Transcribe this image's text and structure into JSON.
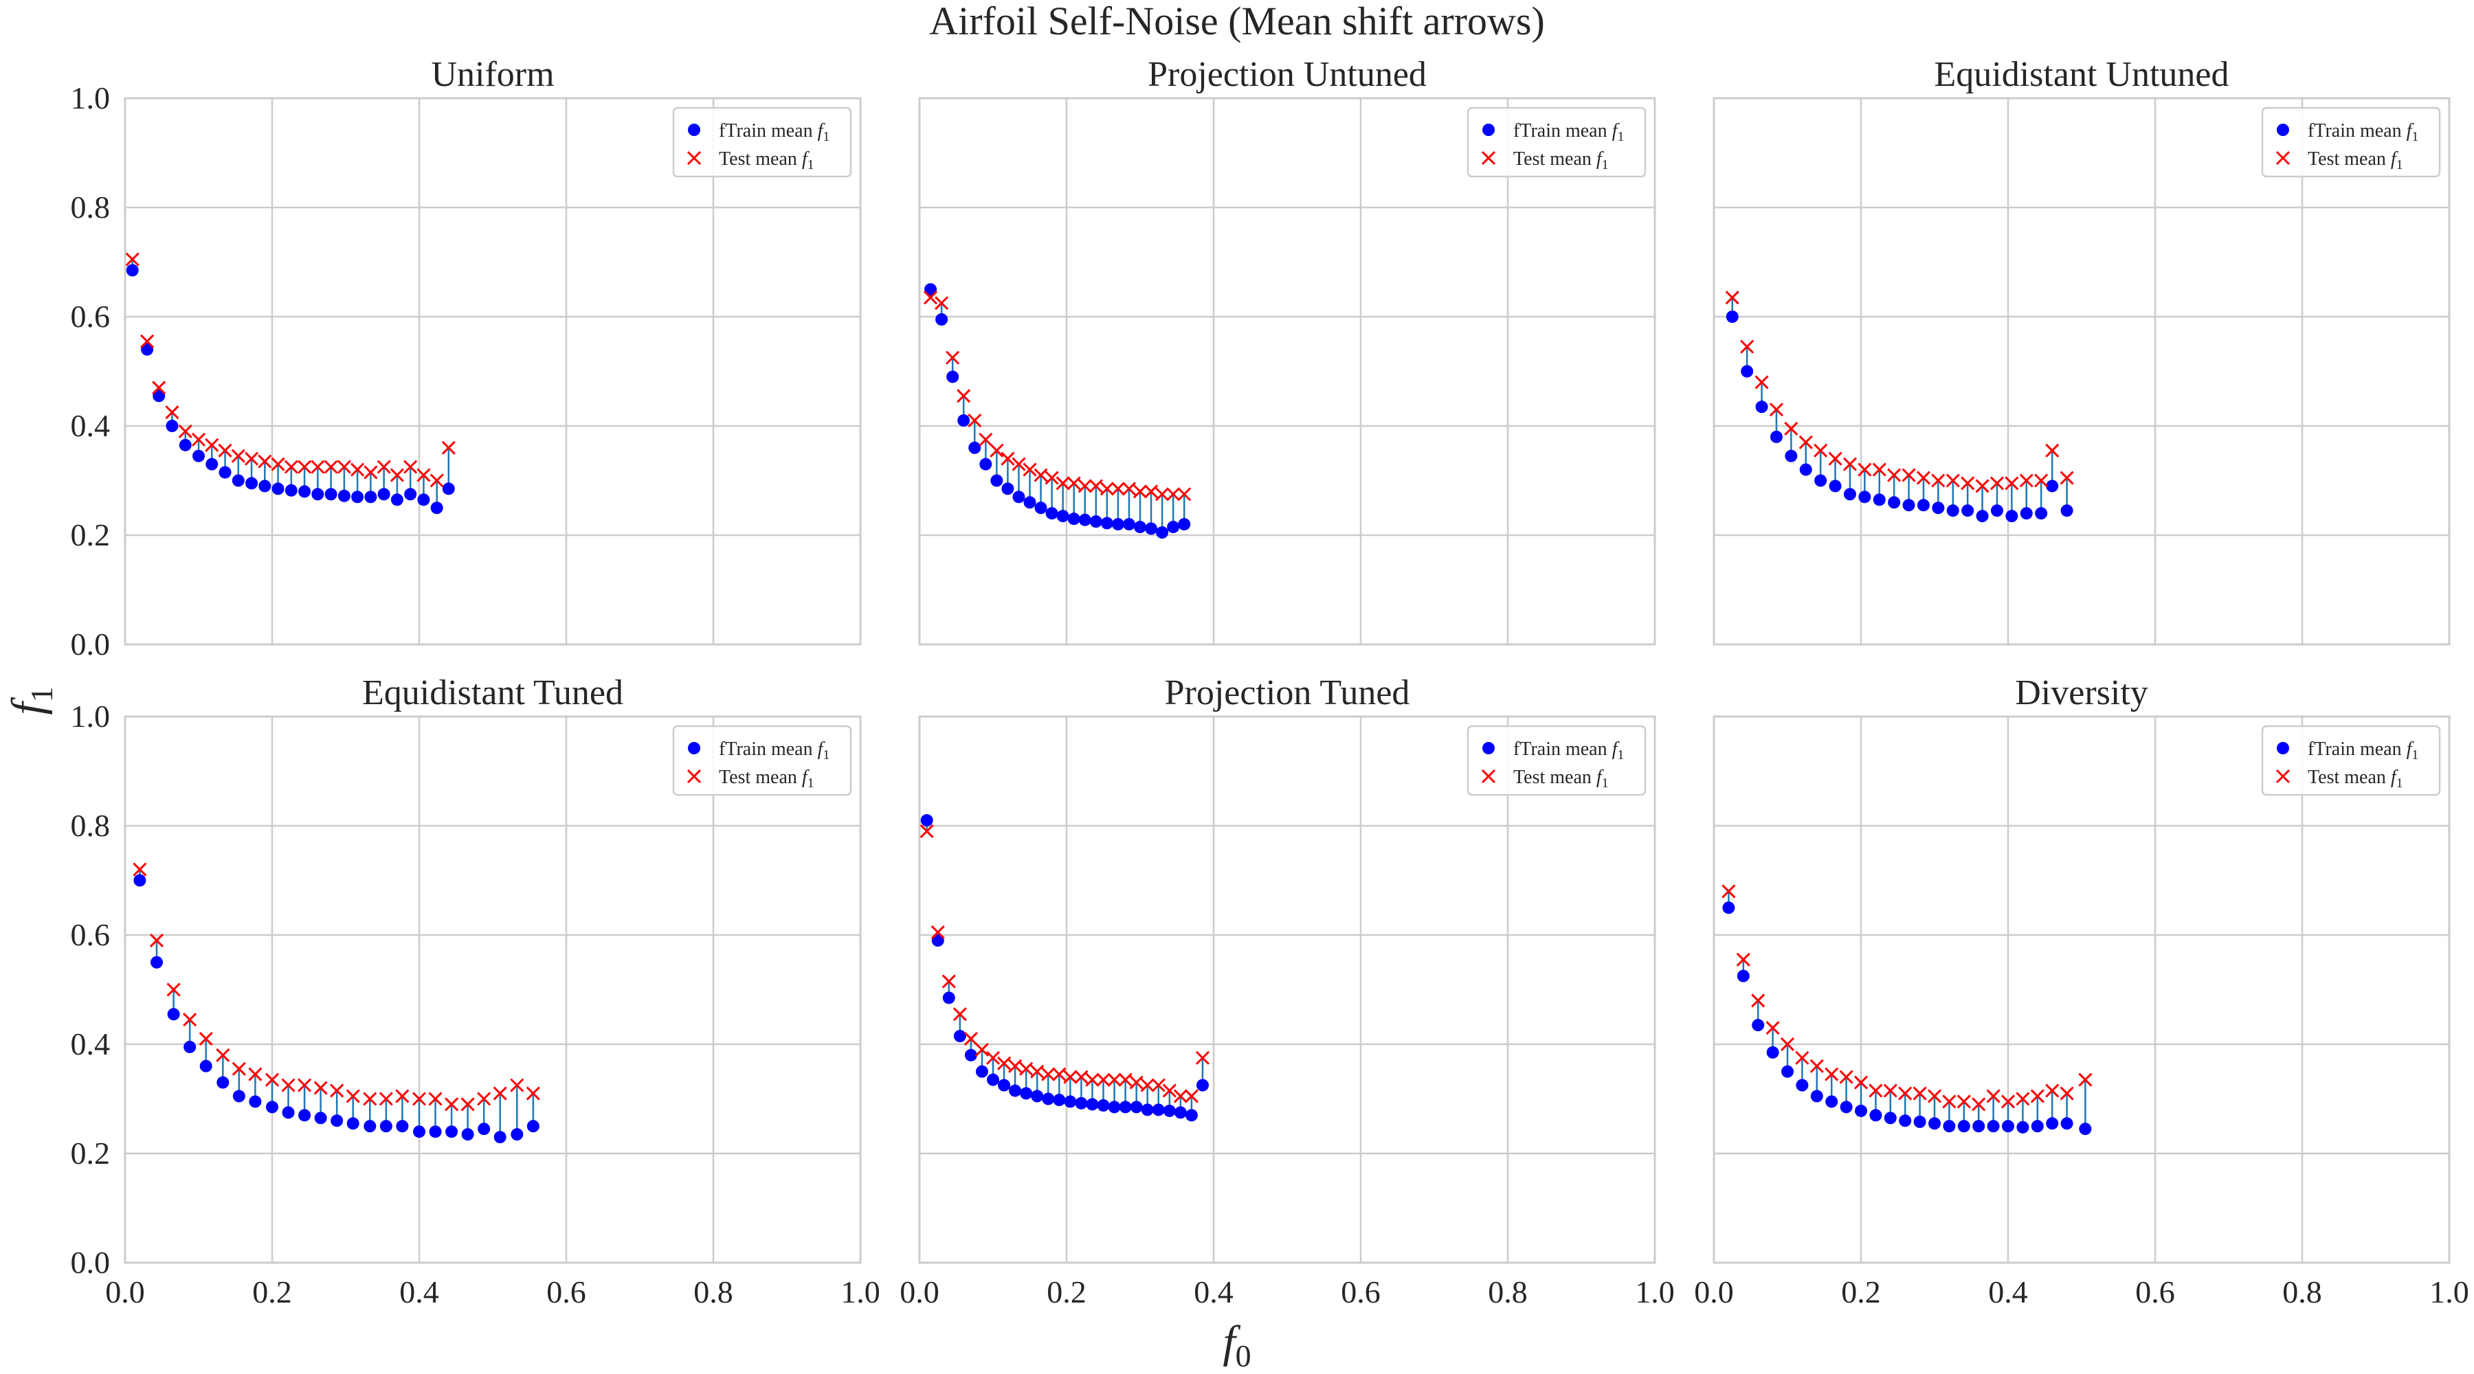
{
  "figure": {
    "title": "Airfoil Self-Noise (Mean shift arrows)",
    "xlabel_base": "f",
    "xlabel_sub": "0",
    "ylabel_base": "f",
    "ylabel_sub": "1"
  },
  "colors": {
    "train_marker": "#0000ff",
    "test_marker": "#ff0000",
    "shift_line": "#1f77b4",
    "grid": "#cccccc",
    "axes_frame": "#cccccc",
    "text": "#262626"
  },
  "legend": {
    "train_label": "fTrain mean ",
    "test_label": "Test mean ",
    "var_base": "f",
    "var_sub": "1",
    "placement": "top-right"
  },
  "chart_data": [
    {
      "type": "scatter",
      "title": "Uniform",
      "xlim": [
        0,
        1
      ],
      "ylim": [
        0,
        1
      ],
      "xticks": [
        "0.0",
        "0.2",
        "0.4",
        "0.6",
        "0.8",
        "1.0"
      ],
      "yticks": [
        "0.0",
        "0.2",
        "0.4",
        "0.6",
        "0.8",
        "1.0"
      ],
      "grid": true,
      "series": [
        {
          "name": "fTrain mean f1",
          "marker": "circle",
          "x": [
            0.01,
            0.03,
            0.046,
            0.064,
            0.082,
            0.1,
            0.118,
            0.136,
            0.154,
            0.172,
            0.19,
            0.208,
            0.226,
            0.244,
            0.262,
            0.28,
            0.298,
            0.316,
            0.334,
            0.352,
            0.37,
            0.388,
            0.406,
            0.424,
            0.44
          ],
          "y": [
            0.685,
            0.54,
            0.455,
            0.4,
            0.365,
            0.345,
            0.33,
            0.315,
            0.3,
            0.295,
            0.29,
            0.285,
            0.282,
            0.28,
            0.275,
            0.275,
            0.272,
            0.27,
            0.27,
            0.275,
            0.265,
            0.275,
            0.265,
            0.25,
            0.285
          ]
        },
        {
          "name": "Test mean f1",
          "marker": "x",
          "x": [
            0.01,
            0.03,
            0.046,
            0.064,
            0.082,
            0.1,
            0.118,
            0.136,
            0.154,
            0.172,
            0.19,
            0.208,
            0.226,
            0.244,
            0.262,
            0.28,
            0.298,
            0.316,
            0.334,
            0.352,
            0.37,
            0.388,
            0.406,
            0.424,
            0.44
          ],
          "y": [
            0.705,
            0.555,
            0.47,
            0.425,
            0.39,
            0.375,
            0.365,
            0.355,
            0.345,
            0.34,
            0.335,
            0.33,
            0.325,
            0.325,
            0.325,
            0.325,
            0.325,
            0.32,
            0.315,
            0.325,
            0.31,
            0.325,
            0.31,
            0.3,
            0.36
          ]
        }
      ]
    },
    {
      "type": "scatter",
      "title": "Projection Untuned",
      "xlim": [
        0,
        1
      ],
      "ylim": [
        0,
        1
      ],
      "xticks": [
        "0.0",
        "0.2",
        "0.4",
        "0.6",
        "0.8",
        "1.0"
      ],
      "yticks": [
        "0.0",
        "0.2",
        "0.4",
        "0.6",
        "0.8",
        "1.0"
      ],
      "grid": true,
      "series": [
        {
          "name": "fTrain mean f1",
          "marker": "circle",
          "x": [
            0.015,
            0.03,
            0.045,
            0.06,
            0.075,
            0.09,
            0.105,
            0.12,
            0.135,
            0.15,
            0.165,
            0.18,
            0.195,
            0.21,
            0.225,
            0.24,
            0.255,
            0.27,
            0.285,
            0.3,
            0.315,
            0.33,
            0.345,
            0.36
          ],
          "y": [
            0.65,
            0.595,
            0.49,
            0.41,
            0.36,
            0.33,
            0.3,
            0.285,
            0.27,
            0.26,
            0.25,
            0.24,
            0.235,
            0.23,
            0.228,
            0.225,
            0.222,
            0.22,
            0.22,
            0.215,
            0.212,
            0.205,
            0.215,
            0.22
          ]
        },
        {
          "name": "Test mean f1",
          "marker": "x",
          "x": [
            0.015,
            0.03,
            0.045,
            0.06,
            0.075,
            0.09,
            0.105,
            0.12,
            0.135,
            0.15,
            0.165,
            0.18,
            0.195,
            0.21,
            0.225,
            0.24,
            0.255,
            0.27,
            0.285,
            0.3,
            0.315,
            0.33,
            0.345,
            0.36
          ],
          "y": [
            0.635,
            0.625,
            0.525,
            0.455,
            0.41,
            0.375,
            0.355,
            0.34,
            0.33,
            0.32,
            0.31,
            0.305,
            0.295,
            0.295,
            0.29,
            0.29,
            0.285,
            0.285,
            0.285,
            0.28,
            0.28,
            0.275,
            0.275,
            0.275
          ]
        }
      ]
    },
    {
      "type": "scatter",
      "title": "Equidistant Untuned",
      "xlim": [
        0,
        1
      ],
      "ylim": [
        0,
        1
      ],
      "xticks": [
        "0.0",
        "0.2",
        "0.4",
        "0.6",
        "0.8",
        "1.0"
      ],
      "yticks": [
        "0.0",
        "0.2",
        "0.4",
        "0.6",
        "0.8",
        "1.0"
      ],
      "grid": true,
      "series": [
        {
          "name": "fTrain mean f1",
          "marker": "circle",
          "x": [
            0.025,
            0.045,
            0.065,
            0.085,
            0.105,
            0.125,
            0.145,
            0.165,
            0.185,
            0.205,
            0.225,
            0.245,
            0.265,
            0.285,
            0.305,
            0.325,
            0.345,
            0.365,
            0.385,
            0.405,
            0.425,
            0.445,
            0.46,
            0.48
          ],
          "y": [
            0.6,
            0.5,
            0.435,
            0.38,
            0.345,
            0.32,
            0.3,
            0.29,
            0.275,
            0.27,
            0.265,
            0.26,
            0.255,
            0.255,
            0.25,
            0.245,
            0.245,
            0.235,
            0.245,
            0.235,
            0.24,
            0.24,
            0.29,
            0.245
          ]
        },
        {
          "name": "Test mean f1",
          "marker": "x",
          "x": [
            0.025,
            0.045,
            0.065,
            0.085,
            0.105,
            0.125,
            0.145,
            0.165,
            0.185,
            0.205,
            0.225,
            0.245,
            0.265,
            0.285,
            0.305,
            0.325,
            0.345,
            0.365,
            0.385,
            0.405,
            0.425,
            0.445,
            0.46,
            0.48
          ],
          "y": [
            0.635,
            0.545,
            0.48,
            0.43,
            0.395,
            0.37,
            0.355,
            0.34,
            0.33,
            0.32,
            0.32,
            0.31,
            0.31,
            0.305,
            0.3,
            0.3,
            0.295,
            0.29,
            0.295,
            0.295,
            0.3,
            0.3,
            0.355,
            0.305
          ]
        }
      ]
    },
    {
      "type": "scatter",
      "title": "Equidistant Tuned",
      "xlim": [
        0,
        1
      ],
      "ylim": [
        0,
        1
      ],
      "xticks": [
        "0.0",
        "0.2",
        "0.4",
        "0.6",
        "0.8",
        "1.0"
      ],
      "yticks": [
        "0.0",
        "0.2",
        "0.4",
        "0.6",
        "0.8",
        "1.0"
      ],
      "grid": true,
      "series": [
        {
          "name": "fTrain mean f1",
          "marker": "circle",
          "x": [
            0.02,
            0.043,
            0.066,
            0.088,
            0.11,
            0.133,
            0.155,
            0.177,
            0.2,
            0.222,
            0.244,
            0.266,
            0.288,
            0.31,
            0.333,
            0.355,
            0.377,
            0.4,
            0.422,
            0.444,
            0.466,
            0.488,
            0.51,
            0.533,
            0.555
          ],
          "y": [
            0.7,
            0.55,
            0.455,
            0.395,
            0.36,
            0.33,
            0.305,
            0.295,
            0.285,
            0.275,
            0.27,
            0.265,
            0.26,
            0.255,
            0.25,
            0.25,
            0.25,
            0.24,
            0.24,
            0.24,
            0.235,
            0.245,
            0.23,
            0.235,
            0.25
          ]
        },
        {
          "name": "Test mean f1",
          "marker": "x",
          "x": [
            0.02,
            0.043,
            0.066,
            0.088,
            0.11,
            0.133,
            0.155,
            0.177,
            0.2,
            0.222,
            0.244,
            0.266,
            0.288,
            0.31,
            0.333,
            0.355,
            0.377,
            0.4,
            0.422,
            0.444,
            0.466,
            0.488,
            0.51,
            0.533,
            0.555
          ],
          "y": [
            0.72,
            0.59,
            0.5,
            0.445,
            0.41,
            0.38,
            0.355,
            0.345,
            0.335,
            0.325,
            0.325,
            0.32,
            0.315,
            0.305,
            0.3,
            0.3,
            0.305,
            0.3,
            0.3,
            0.29,
            0.29,
            0.3,
            0.31,
            0.325,
            0.31
          ]
        }
      ]
    },
    {
      "type": "scatter",
      "title": "Projection Tuned",
      "xlim": [
        0,
        1
      ],
      "ylim": [
        0,
        1
      ],
      "xticks": [
        "0.0",
        "0.2",
        "0.4",
        "0.6",
        "0.8",
        "1.0"
      ],
      "yticks": [
        "0.0",
        "0.2",
        "0.4",
        "0.6",
        "0.8",
        "1.0"
      ],
      "grid": true,
      "series": [
        {
          "name": "fTrain mean f1",
          "marker": "circle",
          "x": [
            0.01,
            0.025,
            0.04,
            0.055,
            0.07,
            0.085,
            0.1,
            0.115,
            0.13,
            0.145,
            0.16,
            0.175,
            0.19,
            0.205,
            0.22,
            0.235,
            0.25,
            0.265,
            0.28,
            0.295,
            0.31,
            0.325,
            0.34,
            0.355,
            0.37,
            0.385
          ],
          "y": [
            0.81,
            0.59,
            0.485,
            0.415,
            0.38,
            0.35,
            0.335,
            0.325,
            0.315,
            0.31,
            0.305,
            0.3,
            0.298,
            0.295,
            0.292,
            0.29,
            0.288,
            0.285,
            0.285,
            0.285,
            0.28,
            0.28,
            0.278,
            0.275,
            0.27,
            0.325
          ]
        },
        {
          "name": "Test mean f1",
          "marker": "x",
          "x": [
            0.01,
            0.025,
            0.04,
            0.055,
            0.07,
            0.085,
            0.1,
            0.115,
            0.13,
            0.145,
            0.16,
            0.175,
            0.19,
            0.205,
            0.22,
            0.235,
            0.25,
            0.265,
            0.28,
            0.295,
            0.31,
            0.325,
            0.34,
            0.355,
            0.37,
            0.385
          ],
          "y": [
            0.79,
            0.605,
            0.515,
            0.455,
            0.41,
            0.39,
            0.375,
            0.365,
            0.36,
            0.355,
            0.35,
            0.345,
            0.345,
            0.34,
            0.34,
            0.335,
            0.335,
            0.335,
            0.335,
            0.33,
            0.325,
            0.325,
            0.315,
            0.305,
            0.305,
            0.375
          ]
        }
      ]
    },
    {
      "type": "scatter",
      "title": "Diversity",
      "xlim": [
        0,
        1
      ],
      "ylim": [
        0,
        1
      ],
      "xticks": [
        "0.0",
        "0.2",
        "0.4",
        "0.6",
        "0.8",
        "1.0"
      ],
      "yticks": [
        "0.0",
        "0.2",
        "0.4",
        "0.6",
        "0.8",
        "1.0"
      ],
      "grid": true,
      "series": [
        {
          "name": "fTrain mean f1",
          "marker": "circle",
          "x": [
            0.02,
            0.04,
            0.06,
            0.08,
            0.1,
            0.12,
            0.14,
            0.16,
            0.18,
            0.2,
            0.22,
            0.24,
            0.26,
            0.28,
            0.3,
            0.32,
            0.34,
            0.36,
            0.38,
            0.4,
            0.42,
            0.44,
            0.46,
            0.48,
            0.505
          ],
          "y": [
            0.65,
            0.525,
            0.435,
            0.385,
            0.35,
            0.325,
            0.305,
            0.295,
            0.285,
            0.278,
            0.27,
            0.265,
            0.26,
            0.258,
            0.255,
            0.25,
            0.25,
            0.25,
            0.25,
            0.25,
            0.248,
            0.25,
            0.255,
            0.255,
            0.245
          ]
        },
        {
          "name": "Test mean f1",
          "marker": "x",
          "x": [
            0.02,
            0.04,
            0.06,
            0.08,
            0.1,
            0.12,
            0.14,
            0.16,
            0.18,
            0.2,
            0.22,
            0.24,
            0.26,
            0.28,
            0.3,
            0.32,
            0.34,
            0.36,
            0.38,
            0.4,
            0.42,
            0.44,
            0.46,
            0.48,
            0.505
          ],
          "y": [
            0.68,
            0.555,
            0.48,
            0.43,
            0.4,
            0.375,
            0.36,
            0.345,
            0.34,
            0.33,
            0.315,
            0.315,
            0.31,
            0.31,
            0.305,
            0.295,
            0.295,
            0.29,
            0.305,
            0.295,
            0.3,
            0.305,
            0.315,
            0.31,
            0.335
          ]
        }
      ]
    }
  ]
}
